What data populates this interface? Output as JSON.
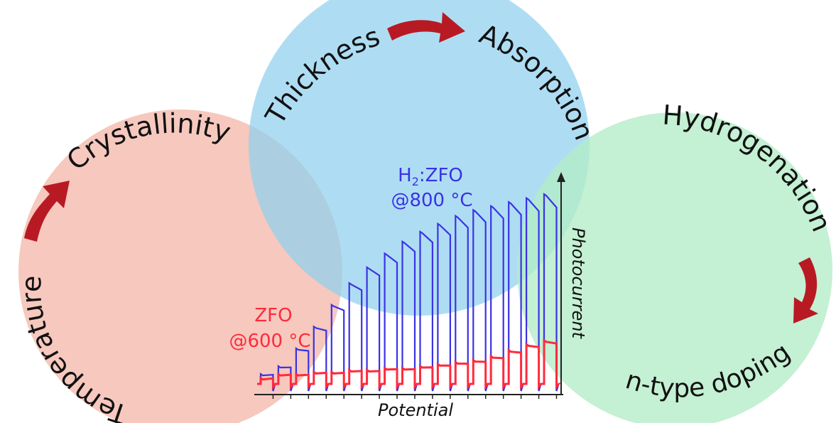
{
  "colors": {
    "red_circle": "#f4bcb0",
    "blue_circle": "#8fd0ee",
    "green_circle": "#b3ecc6",
    "arrow": "#b81a24",
    "zfo_trace": "#ff2a3c",
    "h2zfo_trace": "#3a32e6",
    "axis": "#222222"
  },
  "labels": {
    "temperature": "Temperature",
    "crystallinity": "Crystallinity",
    "thickness": "Thickness",
    "absorption": "Absorption",
    "hydrogenation": "Hydrogenation",
    "ntype_doping": "n-type doping"
  },
  "plot": {
    "xlabel": "Potential",
    "ylabel": "Photocurrent",
    "h2zfo_line1_prefix": "H",
    "h2zfo_line1_sub": "2",
    "h2zfo_line1_suffix": ":ZFO",
    "h2zfo_line2": "@800 °C",
    "zfo_line1": "ZFO",
    "zfo_line2": "@600 °C"
  },
  "chart_data": {
    "type": "line",
    "xlabel": "Potential",
    "ylabel": "Photocurrent",
    "x": [
      1,
      2,
      3,
      4,
      5,
      6,
      7,
      8,
      9,
      10,
      11,
      12,
      13,
      14,
      15,
      16,
      17
    ],
    "series": [
      {
        "name": "H2:ZFO @800 °C",
        "values": [
          0.05,
          0.09,
          0.18,
          0.29,
          0.4,
          0.51,
          0.59,
          0.66,
          0.72,
          0.77,
          0.81,
          0.85,
          0.88,
          0.9,
          0.92,
          0.94,
          0.96
        ]
      },
      {
        "name": "ZFO @600 °C",
        "values": [
          0.03,
          0.05,
          0.05,
          0.06,
          0.06,
          0.07,
          0.07,
          0.08,
          0.08,
          0.09,
          0.1,
          0.11,
          0.12,
          0.14,
          0.17,
          0.2,
          0.22
        ]
      }
    ],
    "ylim": [
      0,
      1
    ],
    "grid": false
  }
}
